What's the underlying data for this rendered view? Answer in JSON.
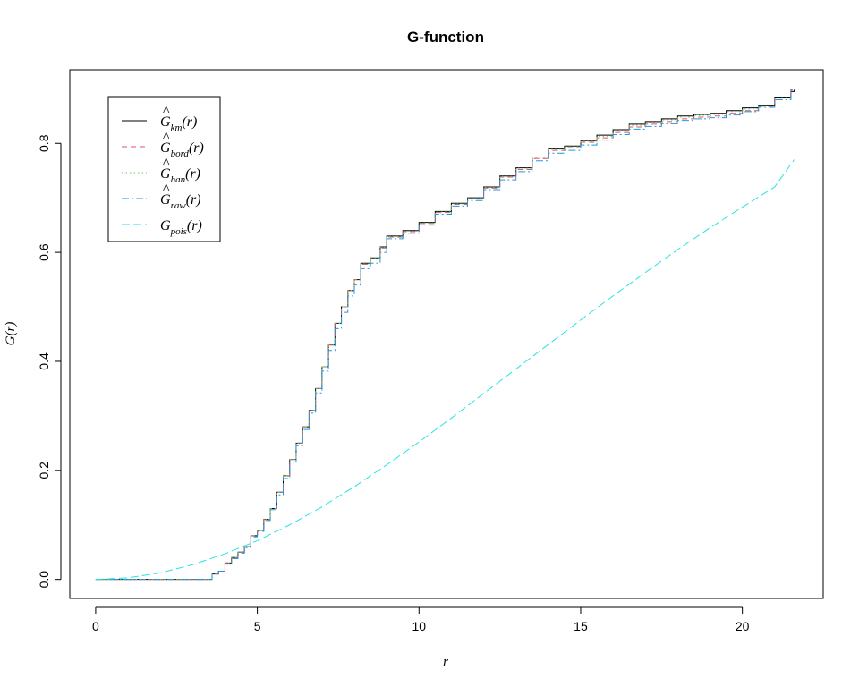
{
  "chart_data": {
    "type": "line",
    "title": "G-function",
    "xlabel": "r",
    "ylabel": "G(r)",
    "xlim": [
      -0.8,
      22.5
    ],
    "ylim": [
      -0.035,
      0.935
    ],
    "x_ticks": [
      0,
      5,
      10,
      15,
      20
    ],
    "y_ticks": [
      0.0,
      0.2,
      0.4,
      0.6,
      0.8
    ],
    "legend_placement": "top-left",
    "series": [
      {
        "name": "km",
        "legend": {
          "base": "G",
          "hat": true,
          "sub": "km",
          "arg": "(r)"
        },
        "color": "#000000",
        "dash": "",
        "step": true,
        "x": [
          0,
          3.5,
          3.6,
          3.8,
          4.0,
          4.2,
          4.4,
          4.6,
          4.8,
          5.0,
          5.2,
          5.4,
          5.6,
          5.8,
          6.0,
          6.2,
          6.4,
          6.6,
          6.8,
          7.0,
          7.2,
          7.4,
          7.6,
          7.8,
          8.0,
          8.2,
          8.5,
          8.8,
          9.0,
          9.5,
          10.0,
          10.5,
          11.0,
          11.5,
          12.0,
          12.5,
          13.0,
          13.5,
          14.0,
          14.5,
          15.0,
          15.5,
          16.0,
          16.5,
          17.0,
          17.5,
          18.0,
          18.5,
          19.0,
          19.5,
          20.0,
          20.5,
          21.0,
          21.5,
          21.6
        ],
        "y": [
          0.0,
          0.0,
          0.01,
          0.015,
          0.03,
          0.04,
          0.05,
          0.06,
          0.08,
          0.09,
          0.11,
          0.13,
          0.16,
          0.19,
          0.22,
          0.25,
          0.28,
          0.31,
          0.35,
          0.39,
          0.43,
          0.47,
          0.5,
          0.53,
          0.55,
          0.58,
          0.59,
          0.61,
          0.63,
          0.64,
          0.655,
          0.675,
          0.69,
          0.7,
          0.72,
          0.74,
          0.755,
          0.775,
          0.79,
          0.795,
          0.805,
          0.815,
          0.825,
          0.835,
          0.84,
          0.845,
          0.85,
          0.853,
          0.855,
          0.86,
          0.865,
          0.87,
          0.885,
          0.895,
          0.9
        ]
      },
      {
        "name": "bord",
        "legend": {
          "base": "G",
          "hat": true,
          "sub": "bord",
          "arg": "(r)"
        },
        "color": "#DF536B",
        "dash": "6,4",
        "step": true,
        "x": [
          0,
          3.5,
          3.6,
          3.8,
          4.0,
          4.2,
          4.4,
          4.6,
          4.8,
          5.0,
          5.2,
          5.4,
          5.6,
          5.8,
          6.0,
          6.2,
          6.4,
          6.6,
          6.8,
          7.0,
          7.2,
          7.4,
          7.6,
          7.8,
          8.0,
          8.2,
          8.5,
          8.8,
          9.0,
          9.5,
          10.0,
          10.5,
          11.0,
          11.5,
          12.0,
          12.5,
          13.0,
          13.5,
          14.0,
          14.5,
          15.0,
          15.5,
          16.0,
          16.5,
          17.0,
          17.5,
          18.0,
          18.5,
          19.0,
          19.5,
          20.0,
          20.5,
          21.0,
          21.5,
          21.6
        ],
        "y": [
          0.0,
          0.0,
          0.01,
          0.015,
          0.03,
          0.04,
          0.05,
          0.06,
          0.08,
          0.09,
          0.11,
          0.13,
          0.16,
          0.19,
          0.22,
          0.25,
          0.28,
          0.31,
          0.35,
          0.39,
          0.43,
          0.47,
          0.5,
          0.53,
          0.55,
          0.578,
          0.588,
          0.608,
          0.628,
          0.638,
          0.653,
          0.673,
          0.688,
          0.698,
          0.718,
          0.738,
          0.752,
          0.772,
          0.787,
          0.792,
          0.802,
          0.81,
          0.82,
          0.83,
          0.835,
          0.84,
          0.845,
          0.848,
          0.85,
          0.855,
          0.86,
          0.868,
          0.883,
          0.898,
          0.9
        ]
      },
      {
        "name": "han",
        "legend": {
          "base": "G",
          "hat": true,
          "sub": "han",
          "arg": "(r)"
        },
        "color": "#61D04F",
        "dash": "1.5,3",
        "step": true,
        "x": [
          0,
          3.5,
          3.6,
          3.8,
          4.0,
          4.2,
          4.4,
          4.6,
          4.8,
          5.0,
          5.2,
          5.4,
          5.6,
          5.8,
          6.0,
          6.2,
          6.4,
          6.6,
          6.8,
          7.0,
          7.2,
          7.4,
          7.6,
          7.8,
          8.0,
          8.2,
          8.5,
          8.8,
          9.0,
          9.5,
          10.0,
          10.5,
          11.0,
          11.5,
          12.0,
          12.5,
          13.0,
          13.5,
          14.0,
          14.5,
          15.0,
          15.5,
          16.0,
          16.5,
          17.0,
          17.5,
          18.0,
          18.5,
          19.0,
          19.5,
          20.0,
          20.5,
          21.0,
          21.5,
          21.6
        ],
        "y": [
          0.0,
          0.0,
          0.01,
          0.015,
          0.03,
          0.04,
          0.05,
          0.06,
          0.08,
          0.09,
          0.11,
          0.13,
          0.16,
          0.19,
          0.22,
          0.25,
          0.28,
          0.31,
          0.35,
          0.39,
          0.43,
          0.47,
          0.5,
          0.53,
          0.55,
          0.579,
          0.589,
          0.609,
          0.629,
          0.639,
          0.654,
          0.674,
          0.689,
          0.699,
          0.719,
          0.739,
          0.754,
          0.774,
          0.789,
          0.794,
          0.804,
          0.813,
          0.823,
          0.833,
          0.838,
          0.843,
          0.848,
          0.851,
          0.853,
          0.858,
          0.863,
          0.869,
          0.884,
          0.897,
          0.9
        ]
      },
      {
        "name": "raw",
        "legend": {
          "base": "G",
          "hat": true,
          "sub": "raw",
          "arg": "(r)"
        },
        "color": "#2297E6",
        "dash": "8,3,2,3",
        "step": true,
        "x": [
          0,
          3.5,
          3.6,
          3.8,
          4.0,
          4.2,
          4.4,
          4.6,
          4.8,
          5.0,
          5.2,
          5.4,
          5.6,
          5.8,
          6.0,
          6.2,
          6.4,
          6.6,
          6.8,
          7.0,
          7.2,
          7.4,
          7.6,
          7.8,
          8.0,
          8.2,
          8.5,
          8.8,
          9.0,
          9.5,
          10.0,
          10.5,
          11.0,
          11.5,
          12.0,
          12.5,
          13.0,
          13.5,
          14.0,
          14.5,
          15.0,
          15.5,
          16.0,
          16.5,
          17.0,
          17.5,
          18.0,
          18.5,
          19.0,
          19.5,
          20.0,
          20.5,
          21.0,
          21.5,
          21.6
        ],
        "y": [
          0.0,
          0.0,
          0.01,
          0.015,
          0.028,
          0.038,
          0.048,
          0.058,
          0.078,
          0.088,
          0.108,
          0.128,
          0.155,
          0.185,
          0.215,
          0.245,
          0.275,
          0.305,
          0.342,
          0.382,
          0.42,
          0.46,
          0.49,
          0.52,
          0.54,
          0.57,
          0.58,
          0.6,
          0.625,
          0.635,
          0.65,
          0.67,
          0.685,
          0.695,
          0.715,
          0.733,
          0.748,
          0.768,
          0.782,
          0.787,
          0.797,
          0.806,
          0.816,
          0.826,
          0.831,
          0.836,
          0.842,
          0.845,
          0.847,
          0.852,
          0.858,
          0.866,
          0.88,
          0.897,
          0.9
        ]
      },
      {
        "name": "pois",
        "legend": {
          "base": "G",
          "hat": false,
          "sub": "pois",
          "arg": "(r)"
        },
        "color": "#28E2E5",
        "dash": "9,4",
        "step": false,
        "x": [
          0,
          1,
          2,
          3,
          4,
          5,
          6,
          7,
          8,
          9,
          10,
          11,
          12,
          13,
          14,
          15,
          16,
          17,
          18,
          19,
          20,
          21,
          21.6
        ],
        "y": [
          0.0,
          0.003,
          0.012,
          0.027,
          0.047,
          0.071,
          0.1,
          0.133,
          0.17,
          0.21,
          0.252,
          0.296,
          0.341,
          0.386,
          0.431,
          0.476,
          0.52,
          0.563,
          0.605,
          0.645,
          0.683,
          0.72,
          0.77
        ]
      }
    ]
  }
}
